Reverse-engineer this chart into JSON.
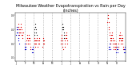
{
  "title": "Milwaukee Weather Evapotranspiration vs Rain per Day (Inches)",
  "title_fontsize": 3.5,
  "background_color": "#ffffff",
  "grid_color": "#999999",
  "x_min": 0,
  "x_max": 365,
  "y_min": -0.02,
  "y_max": 0.32,
  "et_color": "#dd0000",
  "rain_color": "#0000cc",
  "diff_color": "#111111",
  "et_data": [
    [
      8,
      0.2
    ],
    [
      9,
      0.22
    ],
    [
      10,
      0.24
    ],
    [
      11,
      0.22
    ],
    [
      12,
      0.2
    ],
    [
      13,
      0.18
    ],
    [
      14,
      0.16
    ],
    [
      15,
      0.18
    ],
    [
      16,
      0.2
    ],
    [
      17,
      0.22
    ],
    [
      18,
      0.24
    ],
    [
      19,
      0.22
    ],
    [
      20,
      0.2
    ],
    [
      21,
      0.18
    ],
    [
      22,
      0.16
    ],
    [
      23,
      0.14
    ],
    [
      24,
      0.16
    ],
    [
      25,
      0.18
    ],
    [
      35,
      0.08
    ],
    [
      36,
      0.1
    ],
    [
      37,
      0.12
    ],
    [
      38,
      0.14
    ],
    [
      39,
      0.16
    ],
    [
      40,
      0.14
    ],
    [
      41,
      0.12
    ],
    [
      42,
      0.1
    ],
    [
      43,
      0.12
    ],
    [
      44,
      0.14
    ],
    [
      45,
      0.16
    ],
    [
      46,
      0.14
    ],
    [
      47,
      0.12
    ],
    [
      48,
      0.1
    ],
    [
      49,
      0.08
    ],
    [
      50,
      0.06
    ],
    [
      62,
      0.1
    ],
    [
      63,
      0.12
    ],
    [
      64,
      0.14
    ],
    [
      65,
      0.12
    ],
    [
      66,
      0.1
    ],
    [
      67,
      0.08
    ],
    [
      68,
      0.1
    ],
    [
      69,
      0.12
    ],
    [
      70,
      0.14
    ],
    [
      71,
      0.12
    ],
    [
      75,
      0.08
    ],
    [
      76,
      0.1
    ],
    [
      77,
      0.12
    ],
    [
      78,
      0.14
    ],
    [
      79,
      0.12
    ],
    [
      80,
      0.1
    ],
    [
      90,
      0.08
    ],
    [
      91,
      0.1
    ],
    [
      92,
      0.12
    ],
    [
      93,
      0.14
    ],
    [
      94,
      0.12
    ],
    [
      95,
      0.1
    ],
    [
      150,
      0.1
    ],
    [
      151,
      0.12
    ],
    [
      152,
      0.14
    ],
    [
      153,
      0.16
    ],
    [
      154,
      0.14
    ],
    [
      155,
      0.12
    ],
    [
      156,
      0.1
    ],
    [
      157,
      0.08
    ],
    [
      158,
      0.06
    ],
    [
      163,
      0.08
    ],
    [
      164,
      0.1
    ],
    [
      165,
      0.12
    ],
    [
      166,
      0.14
    ],
    [
      167,
      0.16
    ],
    [
      168,
      0.18
    ],
    [
      169,
      0.16
    ],
    [
      170,
      0.14
    ],
    [
      171,
      0.12
    ],
    [
      172,
      0.1
    ],
    [
      305,
      0.25
    ],
    [
      306,
      0.28
    ],
    [
      307,
      0.3
    ],
    [
      308,
      0.28
    ],
    [
      309,
      0.25
    ],
    [
      310,
      0.22
    ],
    [
      311,
      0.2
    ],
    [
      312,
      0.18
    ],
    [
      313,
      0.16
    ],
    [
      314,
      0.14
    ],
    [
      315,
      0.12
    ],
    [
      316,
      0.1
    ],
    [
      317,
      0.12
    ],
    [
      318,
      0.14
    ],
    [
      319,
      0.16
    ],
    [
      320,
      0.18
    ],
    [
      321,
      0.16
    ],
    [
      322,
      0.14
    ],
    [
      323,
      0.12
    ],
    [
      324,
      0.1
    ],
    [
      325,
      0.08
    ],
    [
      326,
      0.06
    ],
    [
      327,
      0.08
    ],
    [
      328,
      0.1
    ],
    [
      329,
      0.12
    ],
    [
      330,
      0.1
    ],
    [
      331,
      0.08
    ],
    [
      332,
      0.06
    ],
    [
      333,
      0.08
    ],
    [
      334,
      0.1
    ],
    [
      340,
      0.06
    ],
    [
      341,
      0.08
    ],
    [
      342,
      0.1
    ],
    [
      343,
      0.12
    ],
    [
      344,
      0.14
    ],
    [
      345,
      0.16
    ],
    [
      346,
      0.18
    ],
    [
      347,
      0.16
    ],
    [
      348,
      0.14
    ],
    [
      349,
      0.12
    ],
    [
      350,
      0.1
    ],
    [
      351,
      0.12
    ],
    [
      352,
      0.14
    ],
    [
      353,
      0.16
    ],
    [
      354,
      0.14
    ],
    [
      355,
      0.12
    ],
    [
      356,
      0.1
    ],
    [
      357,
      0.08
    ],
    [
      358,
      0.06
    ]
  ],
  "rain_data": [
    [
      3,
      0.16
    ],
    [
      4,
      0.18
    ],
    [
      5,
      0.2
    ],
    [
      6,
      0.22
    ],
    [
      7,
      0.2
    ],
    [
      8,
      0.18
    ],
    [
      9,
      0.16
    ],
    [
      10,
      0.14
    ],
    [
      11,
      0.12
    ],
    [
      12,
      0.1
    ],
    [
      30,
      0.06
    ],
    [
      31,
      0.08
    ],
    [
      32,
      0.1
    ],
    [
      33,
      0.08
    ],
    [
      34,
      0.06
    ],
    [
      55,
      0.04
    ],
    [
      56,
      0.06
    ],
    [
      57,
      0.08
    ],
    [
      58,
      0.06
    ],
    [
      59,
      0.04
    ],
    [
      310,
      0.06
    ],
    [
      311,
      0.08
    ],
    [
      312,
      0.1
    ],
    [
      313,
      0.08
    ],
    [
      314,
      0.06
    ],
    [
      335,
      0.04
    ],
    [
      336,
      0.06
    ],
    [
      337,
      0.08
    ],
    [
      338,
      0.06
    ],
    [
      339,
      0.04
    ],
    [
      360,
      0.04
    ],
    [
      361,
      0.06
    ],
    [
      362,
      0.08
    ],
    [
      363,
      0.06
    ],
    [
      364,
      0.04
    ]
  ],
  "diff_data": [
    [
      62,
      0.16
    ],
    [
      63,
      0.18
    ],
    [
      64,
      0.2
    ],
    [
      65,
      0.22
    ],
    [
      66,
      0.24
    ],
    [
      67,
      0.22
    ],
    [
      68,
      0.2
    ],
    [
      69,
      0.18
    ],
    [
      70,
      0.16
    ],
    [
      155,
      0.2
    ],
    [
      156,
      0.22
    ],
    [
      157,
      0.24
    ],
    [
      158,
      0.22
    ],
    [
      159,
      0.2
    ],
    [
      160,
      0.18
    ],
    [
      161,
      0.16
    ],
    [
      162,
      0.14
    ]
  ],
  "month_ticks": [
    1,
    32,
    60,
    91,
    121,
    152,
    182,
    213,
    244,
    274,
    305,
    335,
    365
  ],
  "month_labels": [
    "J",
    "F",
    "M",
    "A",
    "M",
    "J",
    "J",
    "A",
    "S",
    "O",
    "N",
    "D",
    ""
  ]
}
